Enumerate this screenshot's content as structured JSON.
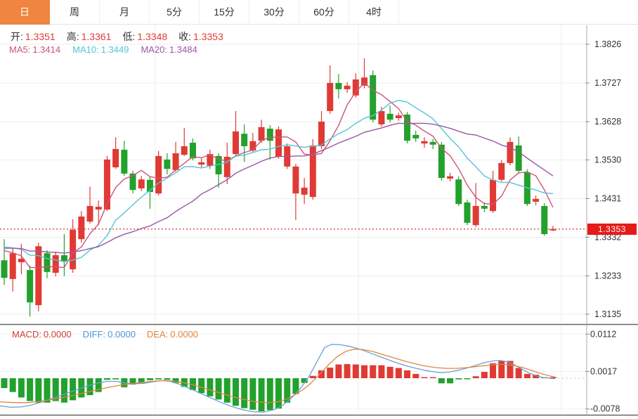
{
  "tabs": {
    "items": [
      {
        "label": "日",
        "active": true
      },
      {
        "label": "周",
        "active": false
      },
      {
        "label": "月",
        "active": false
      },
      {
        "label": "5分",
        "active": false
      },
      {
        "label": "15分",
        "active": false
      },
      {
        "label": "30分",
        "active": false
      },
      {
        "label": "60分",
        "active": false
      },
      {
        "label": "4时",
        "active": false
      }
    ]
  },
  "ohlc": {
    "open_label": "开:",
    "open": "1.3351",
    "high_label": "高:",
    "high": "1.3361",
    "low_label": "低:",
    "low": "1.3348",
    "close_label": "收:",
    "close": "1.3353"
  },
  "ma_info": {
    "ma5_label": "MA5:",
    "ma5": "1.3414",
    "ma10_label": "MA10:",
    "ma10": "1.3449",
    "ma20_label": "MA20:",
    "ma20": "1.3484"
  },
  "macd_info": {
    "macd_label": "MACD:",
    "macd": "0.0000",
    "diff_label": "DIFF:",
    "diff": "0.0000",
    "dea_label": "DEA:",
    "dea": "0.0000"
  },
  "price_axis": {
    "ticks": [
      "1.3826",
      "1.3727",
      "1.3628",
      "1.3530",
      "1.3431",
      "1.3332",
      "1.3233",
      "1.3135"
    ],
    "current": "1.3353"
  },
  "macd_axis": {
    "ticks": [
      "0.0112",
      "0.0017",
      "-0.0078"
    ]
  },
  "colors": {
    "up": "#e03a34",
    "down": "#22a12c",
    "ma5": "#cc5577",
    "ma10": "#52c5d5",
    "ma20": "#9a57a5",
    "diff": "#6aa0d8",
    "dea": "#e0873c",
    "macd_label": "#cc3c38",
    "diff_label": "#4f97d5",
    "dea_label": "#e0873c",
    "ohlc_value": "#e23b36",
    "badge_bg": "#e41b17",
    "tab_active_bg": "#ef8540",
    "dotted_line": "#e0443c",
    "text": "#333333",
    "grid": "#ededed"
  },
  "chart_data": {
    "type": "candlestick",
    "panels": [
      "price",
      "macd"
    ],
    "price_axis_range": {
      "top": 1.3826,
      "bottom": 1.3135
    },
    "current_price": 1.3353,
    "candles_format": [
      "open",
      "high",
      "low",
      "close"
    ],
    "candles": [
      [
        1.3273,
        1.3327,
        1.321,
        1.3228
      ],
      [
        1.3225,
        1.3304,
        1.3193,
        1.3291
      ],
      [
        1.3268,
        1.3315,
        1.3237,
        1.3277
      ],
      [
        1.3248,
        1.3259,
        1.3129,
        1.3165
      ],
      [
        1.3158,
        1.3318,
        1.3142,
        1.3309
      ],
      [
        1.3291,
        1.3299,
        1.3227,
        1.3243
      ],
      [
        1.3241,
        1.3295,
        1.3232,
        1.3286
      ],
      [
        1.3286,
        1.334,
        1.3232,
        1.327
      ],
      [
        1.325,
        1.3378,
        1.3241,
        1.3351
      ],
      [
        1.3327,
        1.3399,
        1.3318,
        1.3385
      ],
      [
        1.3372,
        1.3462,
        1.3367,
        1.3412
      ],
      [
        1.3403,
        1.3426,
        1.3363,
        1.341
      ],
      [
        1.3403,
        1.354,
        1.3399,
        1.3531
      ],
      [
        1.3511,
        1.3588,
        1.3507,
        1.3558
      ],
      [
        1.3556,
        1.3579,
        1.3489,
        1.3495
      ],
      [
        1.3495,
        1.3502,
        1.3444,
        1.3453
      ],
      [
        1.3457,
        1.3489,
        1.345,
        1.348
      ],
      [
        1.3479,
        1.3486,
        1.3405,
        1.3448
      ],
      [
        1.3444,
        1.3553,
        1.3439,
        1.354
      ],
      [
        1.3531,
        1.3547,
        1.3493,
        1.3507
      ],
      [
        1.3504,
        1.3576,
        1.35,
        1.3547
      ],
      [
        1.3543,
        1.3612,
        1.354,
        1.3565
      ],
      [
        1.3574,
        1.3585,
        1.3529,
        1.3534
      ],
      [
        1.3518,
        1.3534,
        1.3511,
        1.3524
      ],
      [
        1.3515,
        1.3556,
        1.3507,
        1.3545
      ],
      [
        1.354,
        1.3547,
        1.3459,
        1.3493
      ],
      [
        1.3486,
        1.3574,
        1.3468,
        1.3538
      ],
      [
        1.3545,
        1.3655,
        1.3538,
        1.3603
      ],
      [
        1.3597,
        1.3621,
        1.3525,
        1.3565
      ],
      [
        1.3554,
        1.3599,
        1.3549,
        1.3578
      ],
      [
        1.3579,
        1.3633,
        1.3574,
        1.3614
      ],
      [
        1.361,
        1.3619,
        1.3531,
        1.3579
      ],
      [
        1.3538,
        1.3616,
        1.3533,
        1.3608
      ],
      [
        1.3513,
        1.3572,
        1.3507,
        1.3565
      ],
      [
        1.3444,
        1.352,
        1.3376,
        1.3513
      ],
      [
        1.3441,
        1.3484,
        1.3417,
        1.3459
      ],
      [
        1.3435,
        1.3583,
        1.3428,
        1.3567
      ],
      [
        1.3565,
        1.3655,
        1.3558,
        1.3628
      ],
      [
        1.3655,
        1.3772,
        1.3648,
        1.3727
      ],
      [
        1.3727,
        1.375,
        1.3687,
        1.3711
      ],
      [
        1.3711,
        1.3729,
        1.3702,
        1.372
      ],
      [
        1.3695,
        1.3752,
        1.3689,
        1.3736
      ],
      [
        1.372,
        1.379,
        1.3713,
        1.3741
      ],
      [
        1.3747,
        1.3759,
        1.3626,
        1.3633
      ],
      [
        1.3621,
        1.3666,
        1.3615,
        1.3655
      ],
      [
        1.3648,
        1.3669,
        1.3626,
        1.3633
      ],
      [
        1.3637,
        1.3651,
        1.363,
        1.3644
      ],
      [
        1.3646,
        1.3653,
        1.3572,
        1.3579
      ],
      [
        1.3594,
        1.3605,
        1.3576,
        1.3585
      ],
      [
        1.3572,
        1.3588,
        1.3561,
        1.3578
      ],
      [
        1.3576,
        1.3583,
        1.3558,
        1.3569
      ],
      [
        1.3569,
        1.3576,
        1.3477,
        1.3484
      ],
      [
        1.3482,
        1.3497,
        1.3475,
        1.3488
      ],
      [
        1.348,
        1.3488,
        1.3412,
        1.3417
      ],
      [
        1.3421,
        1.3428,
        1.3363,
        1.3369
      ],
      [
        1.3363,
        1.3471,
        1.3358,
        1.3412
      ],
      [
        1.3412,
        1.3421,
        1.3396,
        1.3405
      ],
      [
        1.3399,
        1.3502,
        1.3394,
        1.3479
      ],
      [
        1.3479,
        1.3529,
        1.3475,
        1.3522
      ],
      [
        1.3522,
        1.3588,
        1.3516,
        1.3576
      ],
      [
        1.3567,
        1.359,
        1.3497,
        1.3502
      ],
      [
        1.3498,
        1.3506,
        1.3412,
        1.3417
      ],
      [
        1.3423,
        1.3439,
        1.3414,
        1.343
      ],
      [
        1.3412,
        1.3419,
        1.3336,
        1.334
      ],
      [
        1.3351,
        1.3361,
        1.3348,
        1.3353
      ]
    ],
    "ma_periods": [
      5,
      10,
      20
    ],
    "ma_seed": [
      1.329,
      1.3292,
      1.3294,
      1.3296,
      1.3298,
      1.33,
      1.3302,
      1.3304,
      1.3306,
      1.3308,
      1.331,
      1.3312,
      1.3314,
      1.3316,
      1.3318,
      1.332,
      1.3318,
      1.3316,
      1.3314,
      1.3312
    ],
    "ma_readout": {
      "ma5": 1.3414,
      "ma10": 1.3449,
      "ma20": 1.3484
    },
    "macd": {
      "axis_range": {
        "top": 0.0112,
        "mid": 0.0017,
        "bottom": -0.0078
      },
      "readout": {
        "macd": 0.0,
        "diff": 0.0,
        "dea": 0.0
      },
      "bars": [
        -0.0025,
        -0.0035,
        -0.0049,
        -0.0058,
        -0.0062,
        -0.0062,
        -0.0058,
        -0.0062,
        -0.0056,
        -0.0049,
        -0.0043,
        -0.0035,
        -0.0004,
        -0.0003,
        -0.0023,
        -0.0016,
        -0.0012,
        -0.0005,
        -0.0003,
        -0.0004,
        -0.0012,
        -0.0022,
        -0.003,
        -0.0038,
        -0.0046,
        -0.0054,
        -0.0062,
        -0.007,
        -0.0076,
        -0.008,
        -0.0084,
        -0.0081,
        -0.0077,
        -0.0062,
        -0.004,
        -0.0012,
        0.0006,
        0.002,
        0.0027,
        0.0035,
        0.0036,
        0.0035,
        0.0033,
        0.0033,
        0.0033,
        0.0029,
        0.0026,
        0.002,
        0.0011,
        0.0002,
        0.0001,
        -0.0013,
        -0.0013,
        -0.0003,
        -0.0001,
        0.0005,
        0.0016,
        0.0038,
        0.0044,
        0.0044,
        0.0026,
        0.0011,
        0.0009,
        0.0002,
        0.0
      ],
      "diff_points": [
        [
          0,
          -0.007
        ],
        [
          15,
          -0.0074
        ],
        [
          30,
          -0.0073
        ],
        [
          45,
          -0.0068
        ],
        [
          60,
          -0.006
        ],
        [
          80,
          -0.0048
        ],
        [
          100,
          -0.0035
        ],
        [
          120,
          -0.0022
        ],
        [
          140,
          -0.0012
        ],
        [
          152,
          -0.0008
        ],
        [
          165,
          -0.0008
        ],
        [
          177,
          -0.0012
        ],
        [
          190,
          -0.0014
        ],
        [
          205,
          -0.0013
        ],
        [
          218,
          -0.0009
        ],
        [
          230,
          -0.0006
        ],
        [
          242,
          -0.0008
        ],
        [
          255,
          -0.0015
        ],
        [
          270,
          -0.0026
        ],
        [
          285,
          -0.0038
        ],
        [
          300,
          -0.005
        ],
        [
          315,
          -0.0062
        ],
        [
          330,
          -0.0072
        ],
        [
          345,
          -0.008
        ],
        [
          360,
          -0.0085
        ],
        [
          375,
          -0.0086
        ],
        [
          390,
          -0.008
        ],
        [
          403,
          -0.0068
        ],
        [
          415,
          -0.005
        ],
        [
          428,
          -0.0025
        ],
        [
          440,
          0.0005
        ],
        [
          452,
          0.0045
        ],
        [
          462,
          0.0078
        ],
        [
          472,
          0.0086
        ],
        [
          485,
          0.0085
        ],
        [
          500,
          0.008
        ],
        [
          515,
          0.0072
        ],
        [
          530,
          0.0062
        ],
        [
          545,
          0.0052
        ],
        [
          560,
          0.0042
        ],
        [
          575,
          0.0033
        ],
        [
          590,
          0.0026
        ],
        [
          605,
          0.002
        ],
        [
          618,
          0.0016
        ],
        [
          628,
          0.0014
        ],
        [
          640,
          0.0016
        ],
        [
          652,
          0.002
        ],
        [
          665,
          0.0026
        ],
        [
          678,
          0.0033
        ],
        [
          690,
          0.004
        ],
        [
          702,
          0.0044
        ],
        [
          712,
          0.0045
        ],
        [
          722,
          0.0042
        ],
        [
          732,
          0.0034
        ],
        [
          742,
          0.0024
        ],
        [
          752,
          0.0014
        ],
        [
          762,
          0.0007
        ],
        [
          772,
          0.0002
        ],
        [
          782,
          0.0
        ],
        [
          790,
          -0.0001
        ]
      ],
      "dea_points": [
        [
          0,
          -0.006
        ],
        [
          20,
          -0.0062
        ],
        [
          40,
          -0.0062
        ],
        [
          60,
          -0.0058
        ],
        [
          80,
          -0.0052
        ],
        [
          100,
          -0.0045
        ],
        [
          120,
          -0.0037
        ],
        [
          140,
          -0.0029
        ],
        [
          155,
          -0.0023
        ],
        [
          170,
          -0.0018
        ],
        [
          185,
          -0.0014
        ],
        [
          200,
          -0.0011
        ],
        [
          215,
          -0.0008
        ],
        [
          230,
          -0.0006
        ],
        [
          245,
          -0.0007
        ],
        [
          260,
          -0.0011
        ],
        [
          275,
          -0.0017
        ],
        [
          290,
          -0.0025
        ],
        [
          305,
          -0.0033
        ],
        [
          320,
          -0.0041
        ],
        [
          335,
          -0.0049
        ],
        [
          350,
          -0.0055
        ],
        [
          365,
          -0.006
        ],
        [
          380,
          -0.0062
        ],
        [
          395,
          -0.006
        ],
        [
          408,
          -0.0053
        ],
        [
          420,
          -0.0042
        ],
        [
          432,
          -0.0028
        ],
        [
          444,
          -0.001
        ],
        [
          456,
          0.0012
        ],
        [
          468,
          0.0035
        ],
        [
          480,
          0.0055
        ],
        [
          492,
          0.0068
        ],
        [
          504,
          0.0074
        ],
        [
          516,
          0.0073
        ],
        [
          530,
          0.0068
        ],
        [
          545,
          0.006
        ],
        [
          560,
          0.0052
        ],
        [
          575,
          0.0044
        ],
        [
          590,
          0.0037
        ],
        [
          605,
          0.0031
        ],
        [
          620,
          0.0027
        ],
        [
          635,
          0.0025
        ],
        [
          650,
          0.0025
        ],
        [
          665,
          0.0027
        ],
        [
          680,
          0.003
        ],
        [
          695,
          0.0033
        ],
        [
          708,
          0.0035
        ],
        [
          720,
          0.0035
        ],
        [
          732,
          0.0032
        ],
        [
          744,
          0.0027
        ],
        [
          756,
          0.002
        ],
        [
          768,
          0.0013
        ],
        [
          780,
          0.0007
        ],
        [
          792,
          0.0002
        ]
      ]
    }
  }
}
